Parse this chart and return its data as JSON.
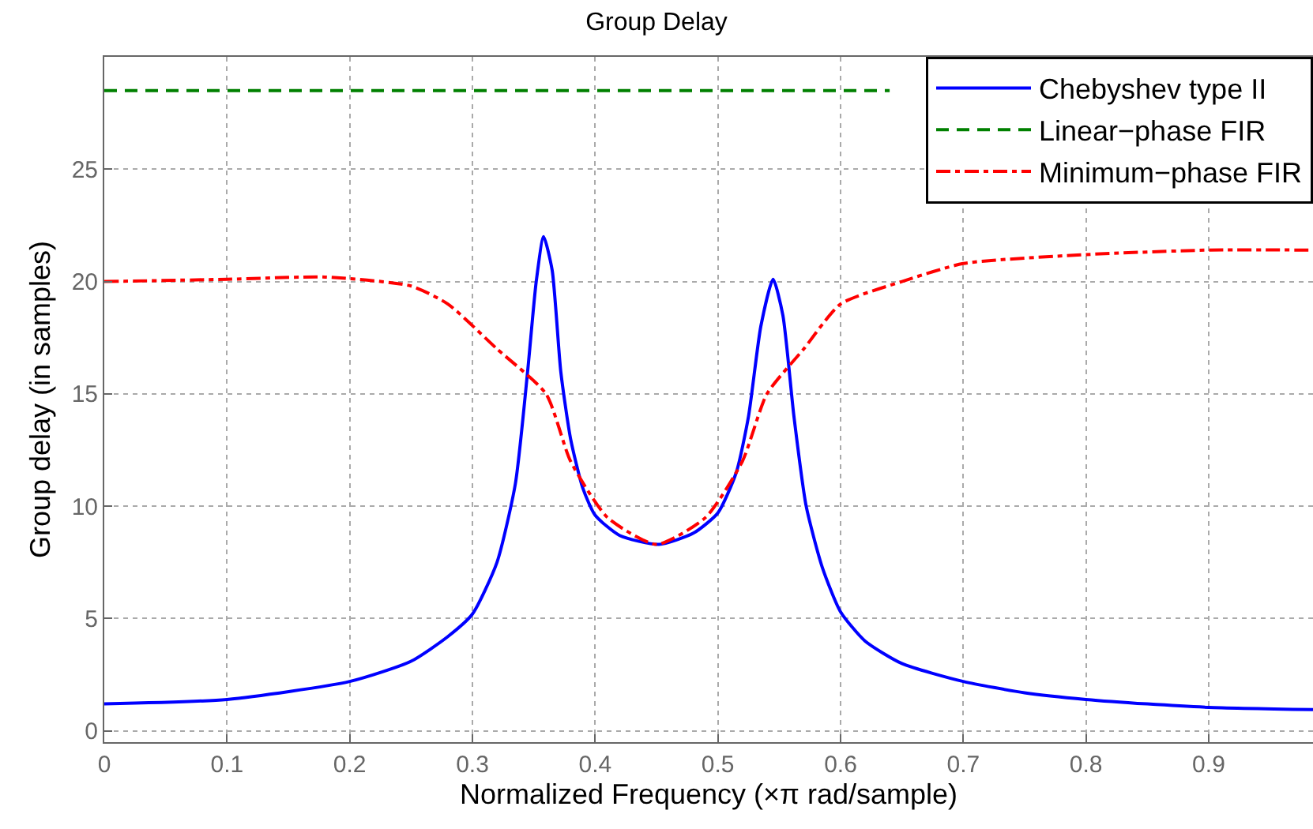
{
  "chart_data": {
    "type": "line",
    "title": "Group Delay",
    "xlabel": "Normalized Frequency (×π rad/sample)",
    "ylabel": "Group delay (in samples)",
    "xlim": [
      0,
      0.985
    ],
    "ylim": [
      -0.5,
      30
    ],
    "xticks": [
      0,
      0.1,
      0.2,
      0.3,
      0.4,
      0.5,
      0.6,
      0.7,
      0.8,
      0.9
    ],
    "yticks": [
      0,
      5,
      10,
      15,
      20,
      25
    ],
    "grid": true,
    "legend": "top right",
    "marker": "none",
    "series": [
      {
        "name": "Chebyshev type II",
        "color": "#0000ff",
        "line_style": "solid",
        "x": [
          0,
          0.1,
          0.2,
          0.25,
          0.28,
          0.3,
          0.32,
          0.335,
          0.345,
          0.352,
          0.358,
          0.365,
          0.372,
          0.38,
          0.39,
          0.4,
          0.42,
          0.452,
          0.48,
          0.5,
          0.515,
          0.525,
          0.535,
          0.545,
          0.553,
          0.562,
          0.572,
          0.585,
          0.6,
          0.62,
          0.65,
          0.7,
          0.75,
          0.8,
          0.85,
          0.9,
          0.985
        ],
        "values": [
          1.2,
          1.4,
          2.2,
          3.1,
          4.2,
          5.2,
          7.5,
          11,
          16,
          20,
          22,
          20.5,
          16,
          13,
          10.8,
          9.6,
          8.7,
          8.3,
          8.8,
          9.7,
          11.5,
          14,
          18,
          20.1,
          18.5,
          14,
          10,
          7.3,
          5.3,
          4,
          3,
          2.2,
          1.7,
          1.4,
          1.2,
          1.05,
          0.95
        ]
      },
      {
        "name": "Linear−phase FIR",
        "color": "#008000",
        "line_style": "dashed",
        "x": [
          0,
          0.64
        ],
        "values": [
          28.5,
          28.5
        ]
      },
      {
        "name": "Minimum−phase FIR",
        "color": "#ff0000",
        "line_style": "dashdot",
        "x": [
          0,
          0.1,
          0.18,
          0.25,
          0.28,
          0.32,
          0.36,
          0.38,
          0.41,
          0.45,
          0.49,
          0.52,
          0.54,
          0.57,
          0.6,
          0.65,
          0.7,
          0.8,
          0.9,
          0.985
        ],
        "values": [
          20,
          20.1,
          20.2,
          19.8,
          19,
          17,
          15,
          12,
          9.5,
          8.3,
          9.5,
          12,
          15,
          17,
          19,
          20,
          20.8,
          21.2,
          21.4,
          21.4
        ]
      }
    ]
  }
}
